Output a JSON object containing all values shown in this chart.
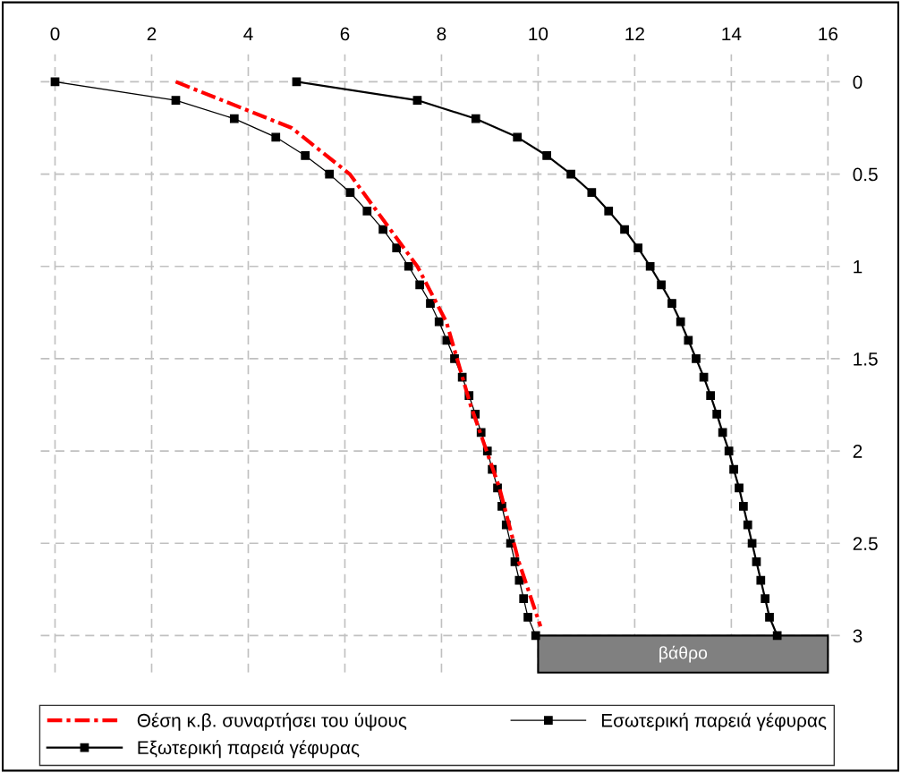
{
  "chart_data": {
    "type": "line",
    "xlim": [
      -0.3,
      16.3
    ],
    "xticks": [
      0,
      2,
      4,
      6,
      8,
      10,
      12,
      14,
      16
    ],
    "ylim": [
      3.2,
      -0.15
    ],
    "yticks": [
      0,
      0.5,
      1,
      1.5,
      2,
      2.5,
      3
    ],
    "grid": true,
    "legend": "bottom",
    "series": [
      {
        "name": "Θέση κ.β. συναρτήσει του ύψους",
        "color": "#ff0000",
        "line_style": "dashed",
        "marker": "none",
        "x": [
          2.5,
          4.9,
          6.1,
          7.5,
          8.1,
          8.6,
          9.2,
          9.6,
          10.05
        ],
        "values": [
          0,
          0.25,
          0.5,
          1.0,
          1.3,
          1.75,
          2.2,
          2.6,
          2.95
        ]
      },
      {
        "name": "Εσωτερική παρειά γέφυρας",
        "color": "#000000",
        "line_style": "solid",
        "marker": "square",
        "x": [
          0,
          2.5,
          3.71,
          4.57,
          5.18,
          5.68,
          6.11,
          6.46,
          6.79,
          7.07,
          7.32,
          7.55,
          7.77,
          7.95,
          8.11,
          8.27,
          8.43,
          8.57,
          8.7,
          8.82,
          8.95,
          9.05,
          9.16,
          9.25,
          9.34,
          9.43,
          9.52,
          9.61,
          9.7,
          9.79,
          9.95
        ],
        "values": [
          0,
          0.1,
          0.2,
          0.3,
          0.4,
          0.5,
          0.6,
          0.7,
          0.8,
          0.9,
          1.0,
          1.1,
          1.2,
          1.3,
          1.4,
          1.5,
          1.6,
          1.7,
          1.8,
          1.9,
          2.0,
          2.1,
          2.2,
          2.3,
          2.4,
          2.5,
          2.6,
          2.7,
          2.8,
          2.9,
          3.0
        ]
      },
      {
        "name": "Εξωτερική παρειά γέφυρας",
        "color": "#000000",
        "line_style": "solid",
        "marker": "square",
        "x": [
          5.0,
          7.5,
          8.71,
          9.57,
          10.18,
          10.68,
          11.11,
          11.46,
          11.79,
          12.07,
          12.32,
          12.55,
          12.77,
          12.95,
          13.11,
          13.27,
          13.43,
          13.57,
          13.7,
          13.82,
          13.95,
          14.05,
          14.16,
          14.25,
          14.34,
          14.43,
          14.52,
          14.61,
          14.7,
          14.79,
          14.95
        ],
        "values": [
          0,
          0.1,
          0.2,
          0.3,
          0.4,
          0.5,
          0.6,
          0.7,
          0.8,
          0.9,
          1.0,
          1.1,
          1.2,
          1.3,
          1.4,
          1.5,
          1.6,
          1.7,
          1.8,
          1.9,
          2.0,
          2.1,
          2.2,
          2.3,
          2.4,
          2.5,
          2.6,
          2.7,
          2.8,
          2.9,
          3.0
        ]
      }
    ],
    "bands": [
      {
        "axis": "x",
        "from": 10,
        "to": 16,
        "label": "βάθρο",
        "color": "#808080"
      }
    ]
  }
}
